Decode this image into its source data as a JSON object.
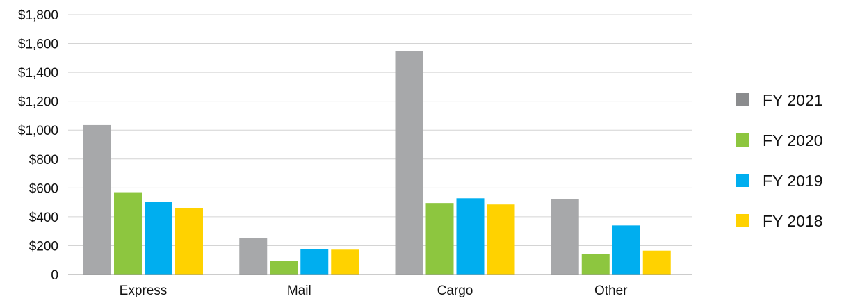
{
  "chart_data": {
    "type": "bar",
    "title": "",
    "xlabel": "",
    "ylabel": "",
    "categories": [
      "Express",
      "Mail",
      "Cargo",
      "Other"
    ],
    "ylim": [
      0,
      1800
    ],
    "yticks": [
      0,
      200,
      400,
      600,
      800,
      1000,
      1200,
      1400,
      1600,
      1800
    ],
    "ytick_labels": [
      "0",
      "$200",
      "$400",
      "$600",
      "$800",
      "$1,000",
      "$1,200",
      "$1,400",
      "$1,600",
      "$1,800"
    ],
    "grid": true,
    "legend_position": "right",
    "series": [
      {
        "name": "FY 2021",
        "color": "#a7a8aa",
        "legend_color": "#8b8c8e",
        "values": [
          1035,
          255,
          1545,
          520
        ]
      },
      {
        "name": "FY 2020",
        "color": "#8dc63f",
        "legend_color": "#8dc63f",
        "values": [
          570,
          95,
          495,
          140
        ]
      },
      {
        "name": "FY 2019",
        "color": "#00aeef",
        "legend_color": "#00aeef",
        "values": [
          505,
          178,
          528,
          340
        ]
      },
      {
        "name": "FY 2018",
        "color": "#ffd200",
        "legend_color": "#ffd200",
        "values": [
          460,
          172,
          485,
          165
        ]
      }
    ]
  }
}
